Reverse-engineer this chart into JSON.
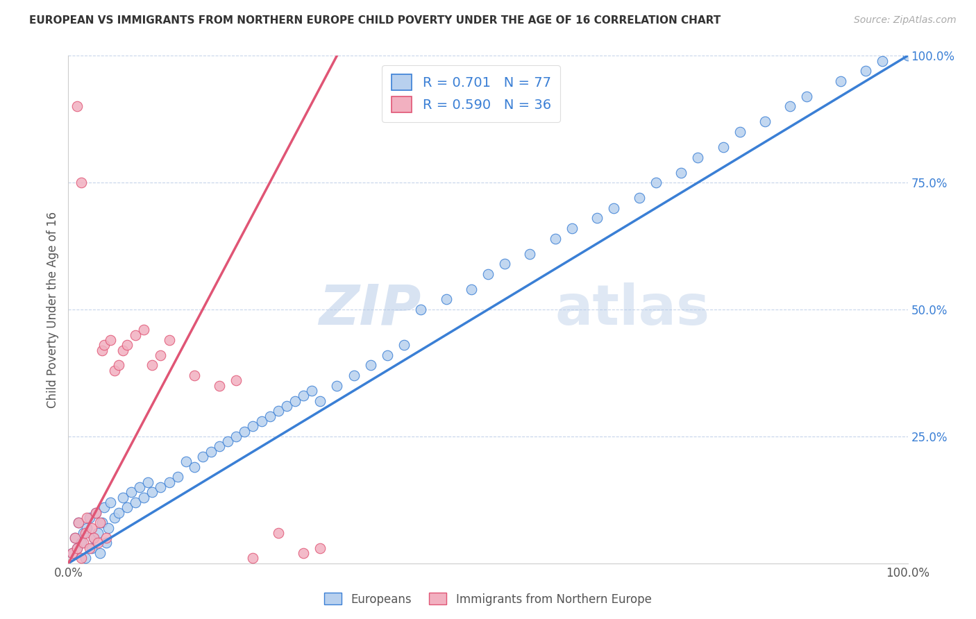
{
  "title": "EUROPEAN VS IMMIGRANTS FROM NORTHERN EUROPE CHILD POVERTY UNDER THE AGE OF 16 CORRELATION CHART",
  "source": "Source: ZipAtlas.com",
  "ylabel": "Child Poverty Under the Age of 16",
  "xlim": [
    0,
    1
  ],
  "ylim": [
    0,
    1
  ],
  "xticks": [
    0,
    0.25,
    0.5,
    0.75,
    1.0
  ],
  "yticks": [
    0.25,
    0.5,
    0.75,
    1.0
  ],
  "xticklabels": [
    "0.0%",
    "",
    "",
    "",
    "100.0%"
  ],
  "yticklabels": [
    "25.0%",
    "50.0%",
    "75.0%",
    "100.0%"
  ],
  "blue_R": "0.701",
  "blue_N": "77",
  "pink_R": "0.590",
  "pink_N": "36",
  "blue_color": "#b8d0ee",
  "pink_color": "#f2b0c0",
  "blue_line_color": "#3a7fd5",
  "pink_line_color": "#e05575",
  "watermark_zip": "ZIP",
  "watermark_atlas": "atlas",
  "legend_label_blue": "Europeans",
  "legend_label_pink": "Immigrants from Northern Europe",
  "blue_line_x": [
    0.0,
    1.0
  ],
  "blue_line_y": [
    0.0,
    1.0
  ],
  "pink_line_x": [
    0.0,
    0.32
  ],
  "pink_line_y": [
    0.0,
    1.0
  ],
  "blue_scatter_x": [
    0.005,
    0.008,
    0.01,
    0.012,
    0.015,
    0.018,
    0.02,
    0.022,
    0.025,
    0.028,
    0.03,
    0.033,
    0.035,
    0.038,
    0.04,
    0.043,
    0.045,
    0.048,
    0.05,
    0.055,
    0.06,
    0.065,
    0.07,
    0.075,
    0.08,
    0.085,
    0.09,
    0.095,
    0.1,
    0.11,
    0.12,
    0.13,
    0.14,
    0.15,
    0.16,
    0.17,
    0.18,
    0.19,
    0.2,
    0.21,
    0.22,
    0.23,
    0.24,
    0.25,
    0.26,
    0.27,
    0.28,
    0.29,
    0.3,
    0.32,
    0.34,
    0.36,
    0.38,
    0.4,
    0.42,
    0.45,
    0.48,
    0.5,
    0.52,
    0.55,
    0.58,
    0.6,
    0.63,
    0.65,
    0.68,
    0.7,
    0.73,
    0.75,
    0.78,
    0.8,
    0.83,
    0.86,
    0.88,
    0.92,
    0.95,
    0.97,
    1.0
  ],
  "blue_scatter_y": [
    0.02,
    0.05,
    0.03,
    0.08,
    0.04,
    0.06,
    0.01,
    0.07,
    0.09,
    0.03,
    0.05,
    0.1,
    0.06,
    0.02,
    0.08,
    0.11,
    0.04,
    0.07,
    0.12,
    0.09,
    0.1,
    0.13,
    0.11,
    0.14,
    0.12,
    0.15,
    0.13,
    0.16,
    0.14,
    0.15,
    0.16,
    0.17,
    0.2,
    0.19,
    0.21,
    0.22,
    0.23,
    0.24,
    0.25,
    0.26,
    0.27,
    0.28,
    0.29,
    0.3,
    0.31,
    0.32,
    0.33,
    0.34,
    0.32,
    0.35,
    0.37,
    0.39,
    0.41,
    0.43,
    0.5,
    0.52,
    0.54,
    0.57,
    0.59,
    0.61,
    0.64,
    0.66,
    0.68,
    0.7,
    0.72,
    0.75,
    0.77,
    0.8,
    0.82,
    0.85,
    0.87,
    0.9,
    0.92,
    0.95,
    0.97,
    0.99,
    1.0
  ],
  "pink_scatter_x": [
    0.005,
    0.008,
    0.01,
    0.012,
    0.015,
    0.018,
    0.02,
    0.022,
    0.025,
    0.028,
    0.03,
    0.033,
    0.035,
    0.038,
    0.04,
    0.043,
    0.045,
    0.05,
    0.055,
    0.06,
    0.065,
    0.07,
    0.08,
    0.09,
    0.1,
    0.11,
    0.12,
    0.15,
    0.18,
    0.2,
    0.22,
    0.25,
    0.28,
    0.3,
    0.01,
    0.015
  ],
  "pink_scatter_y": [
    0.02,
    0.05,
    0.03,
    0.08,
    0.01,
    0.04,
    0.06,
    0.09,
    0.03,
    0.07,
    0.05,
    0.1,
    0.04,
    0.08,
    0.42,
    0.43,
    0.05,
    0.44,
    0.38,
    0.39,
    0.42,
    0.43,
    0.45,
    0.46,
    0.39,
    0.41,
    0.44,
    0.37,
    0.35,
    0.36,
    0.01,
    0.06,
    0.02,
    0.03,
    0.9,
    0.75
  ]
}
